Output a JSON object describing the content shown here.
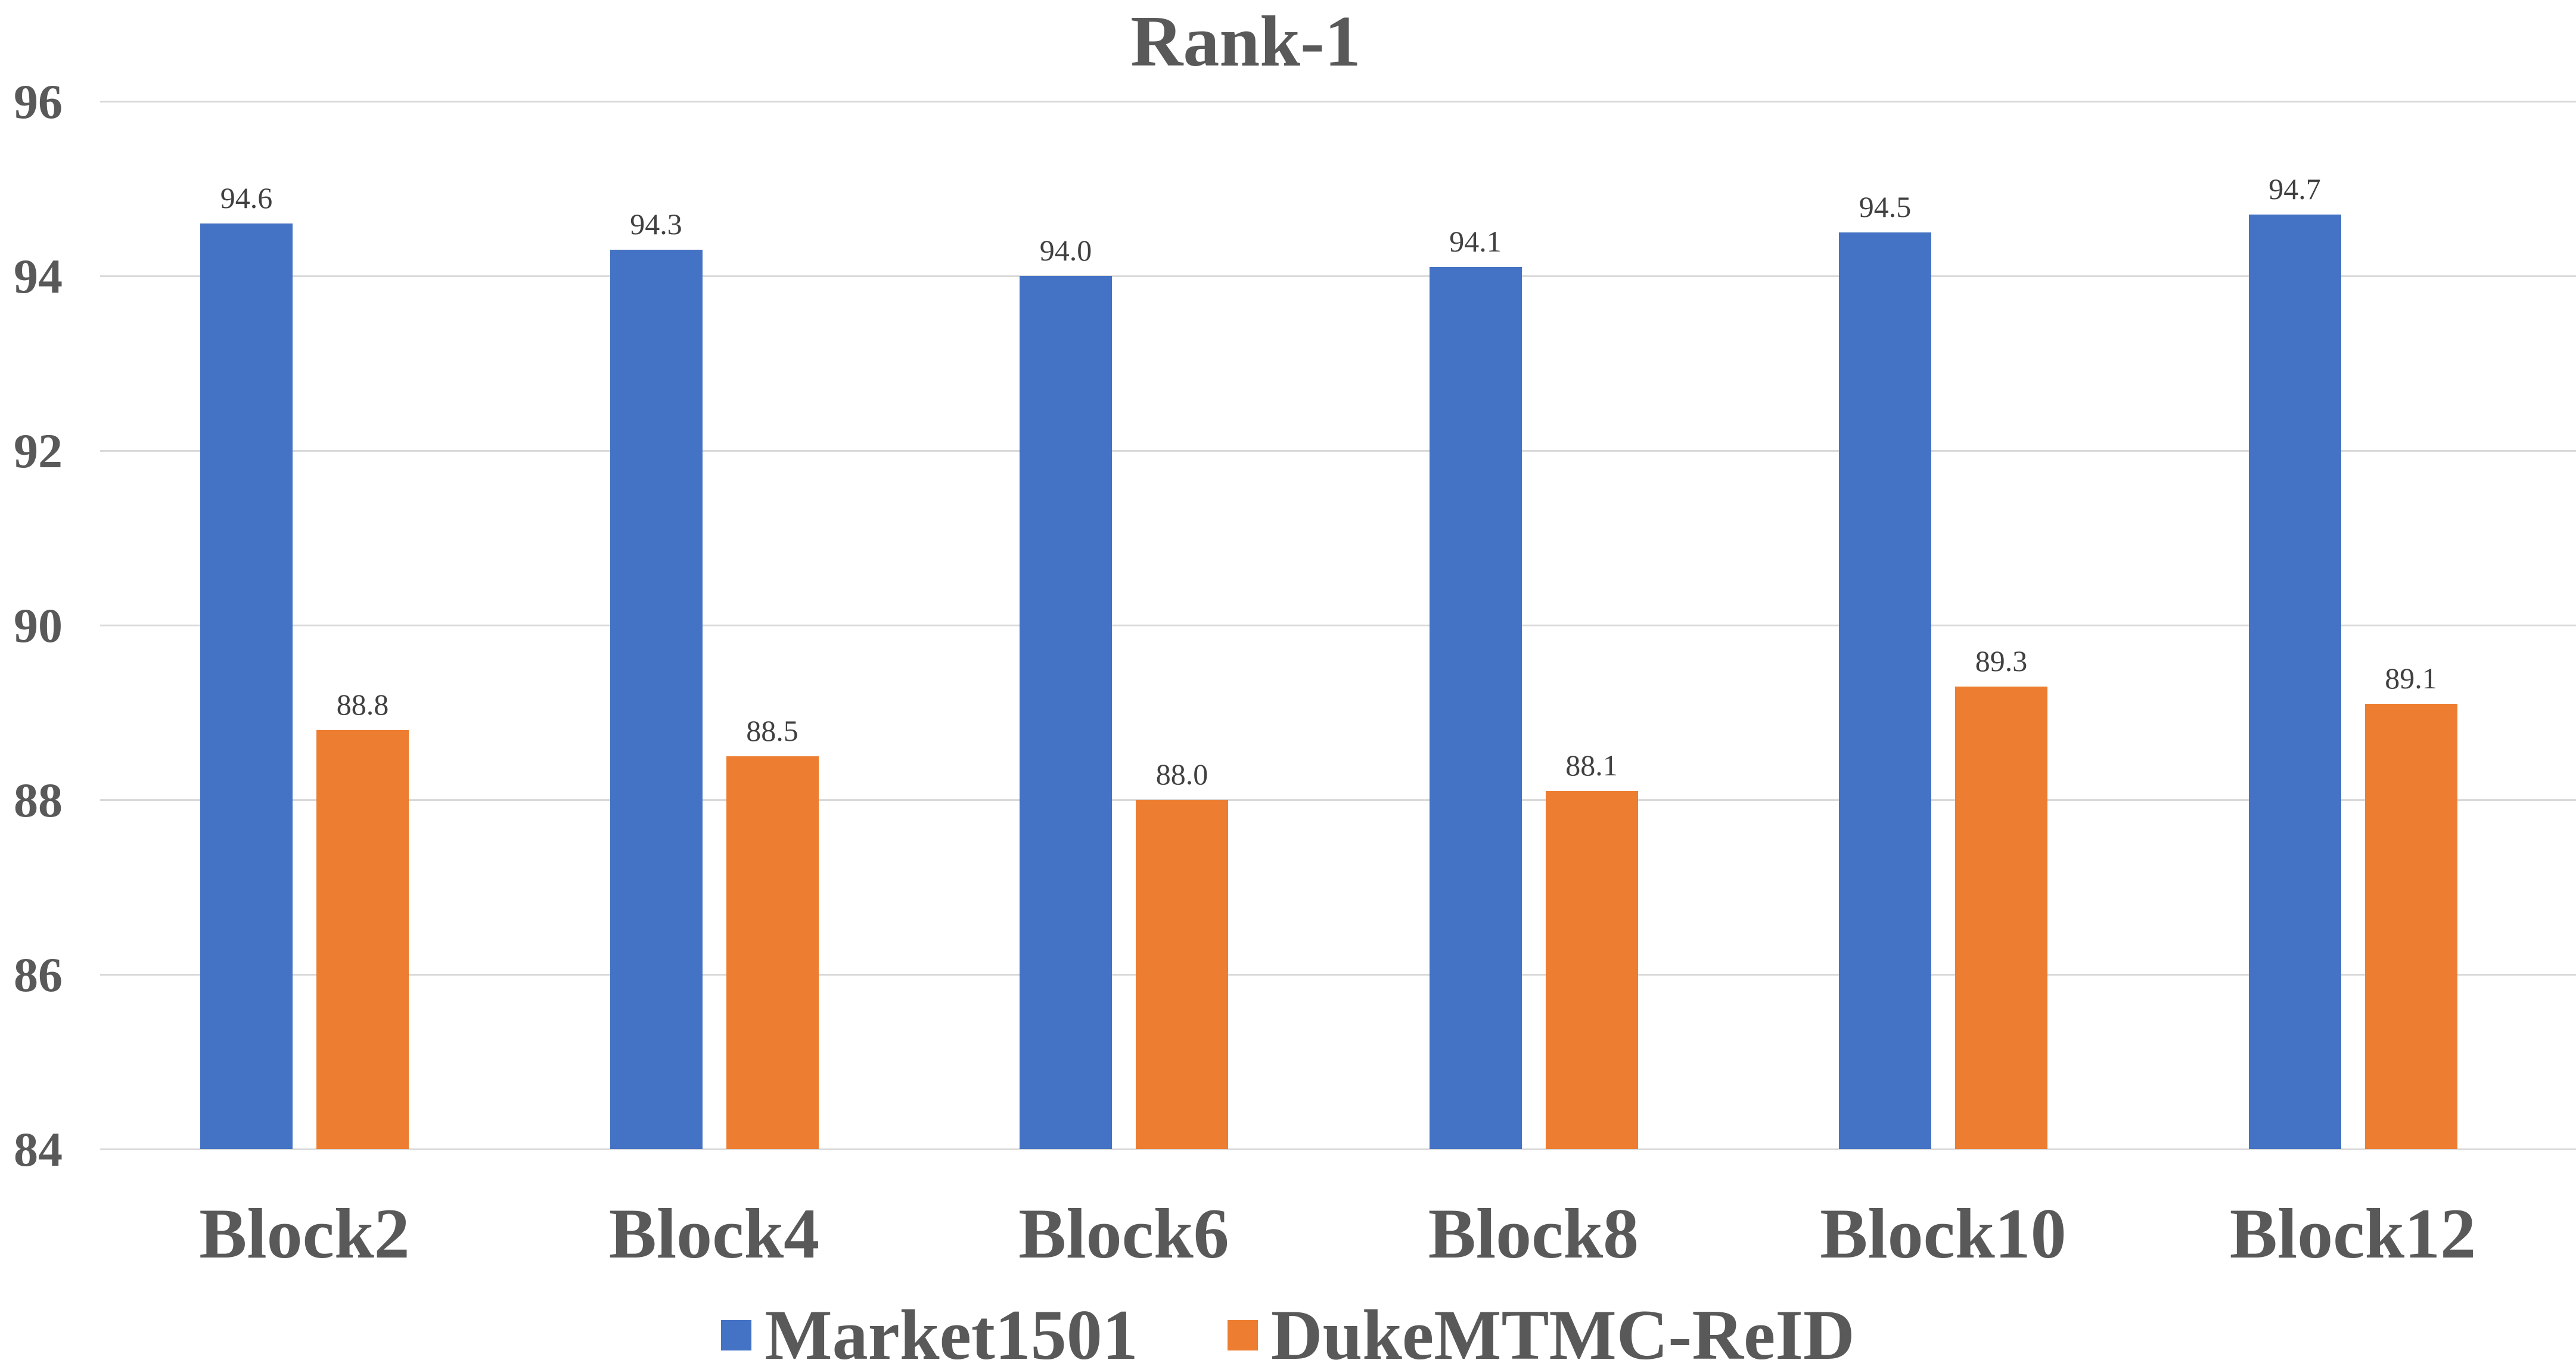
{
  "chart_data": {
    "type": "bar",
    "title": "Rank-1",
    "categories": [
      "Block2",
      "Block4",
      "Block6",
      "Block8",
      "Block10",
      "Block12"
    ],
    "series": [
      {
        "name": "Market1501",
        "color": "#4472C4",
        "values": [
          94.6,
          94.3,
          94.0,
          94.1,
          94.5,
          94.7
        ]
      },
      {
        "name": "DukeMTMC-ReID",
        "color": "#ED7D31",
        "values": [
          88.8,
          88.5,
          88.0,
          88.1,
          89.3,
          89.1
        ]
      }
    ],
    "xlabel": "",
    "ylabel": "",
    "ylim": [
      84,
      96
    ],
    "yticks": [
      96,
      94,
      92,
      90,
      88,
      86,
      84
    ],
    "grid": "horizontal-only",
    "data_labels": true,
    "data_label_format": "one_decimal",
    "legend_position": "bottom-center"
  },
  "colors": {
    "background": "#FFFFFF",
    "gridline": "#D9D9D9",
    "axis_text": "#595959",
    "title_text": "#595959",
    "data_label_text": "#404040"
  }
}
